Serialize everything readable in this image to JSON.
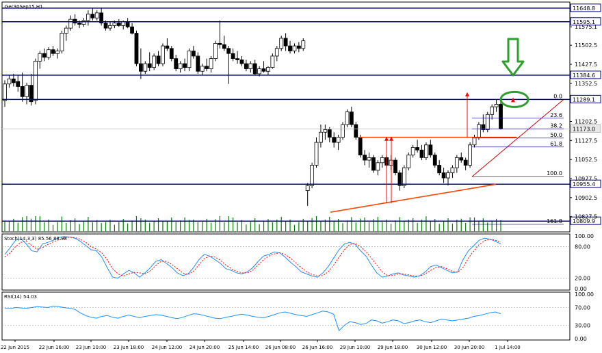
{
  "symbol_label": "Ger30Sep15,H1",
  "stoch_label": "Stoch(14,3,3) 85.56 88.98",
  "rsi_label": "RSI(14) 54.03",
  "colors": {
    "levels": "#00008b",
    "bull_body": "#ffffff",
    "bear_body": "#000000",
    "candle_outline": "#000000",
    "volume": "#008000",
    "fib": "#cc0000",
    "triangle": "#ff4500",
    "signal": "#ff0000",
    "marker": "#2e9e2e",
    "stoch_main": "#1e90ff",
    "stoch_signal": "#ff0000",
    "rsi": "#1e90ff",
    "current_price_line": "#c0c0c0"
  },
  "chart_data": [
    {
      "type": "candlestick",
      "timeframe": "H1",
      "ylim": [
        10770,
        11670
      ],
      "y_ticks": [
        "11575.1",
        "11502.5",
        "11427.5",
        "11352.5",
        "11202.5",
        "11127.5",
        "11052.5",
        "10977.5",
        "10902.5",
        "10827.5"
      ],
      "x_ticks": [
        "22 Jun 2015",
        "22 Jun 16:00",
        "23 Jun 10:00",
        "23 Jun 18:00",
        "24 Jun 12:00",
        "24 Jun 20:00",
        "25 Jun 14:00",
        "26 Jun 08:00",
        "26 Jun 16:00",
        "29 Jun 10:00",
        "29 Jun 18:00",
        "30 Jun 12:00",
        "30 Jun 20:00",
        "1 Jul 14:00"
      ],
      "horizontal_levels": [
        "11648.8",
        "11595.1",
        "11384.6",
        "11289.1",
        "10955.4",
        "10809.9"
      ],
      "current_price": "11173.0",
      "fibonacci": {
        "from": 10985,
        "to": 11289,
        "levels": [
          {
            "label": "0.0",
            "value": 11289.1
          },
          {
            "label": "23.6",
            "value": 11215
          },
          {
            "label": "38.2",
            "value": 11173
          },
          {
            "label": "50.0",
            "value": 11137
          },
          {
            "label": "61.8",
            "value": 11102
          },
          {
            "label": "100.0",
            "value": 10985
          },
          {
            "label": "161.8",
            "value": 10797
          }
        ]
      },
      "candles": [
        [
          11285,
          11365,
          11260,
          11350
        ],
        [
          11350,
          11385,
          11335,
          11370
        ],
        [
          11370,
          11390,
          11340,
          11355
        ],
        [
          11360,
          11385,
          11320,
          11340
        ],
        [
          11340,
          11395,
          11280,
          11300
        ],
        [
          11300,
          11355,
          11270,
          11345
        ],
        [
          11345,
          11390,
          11265,
          11280
        ],
        [
          11285,
          11450,
          11270,
          11440
        ],
        [
          11440,
          11480,
          11410,
          11470
        ],
        [
          11470,
          11490,
          11440,
          11455
        ],
        [
          11455,
          11495,
          11445,
          11485
        ],
        [
          11485,
          11500,
          11460,
          11470
        ],
        [
          11470,
          11490,
          11450,
          11480
        ],
        [
          11480,
          11560,
          11470,
          11550
        ],
        [
          11550,
          11580,
          11520,
          11570
        ],
        [
          11570,
          11620,
          11560,
          11605
        ],
        [
          11605,
          11625,
          11580,
          11590
        ],
        [
          11590,
          11600,
          11570,
          11585
        ],
        [
          11585,
          11610,
          11575,
          11600
        ],
        [
          11600,
          11640,
          11580,
          11625
        ],
        [
          11625,
          11650,
          11600,
          11610
        ],
        [
          11610,
          11640,
          11600,
          11630
        ],
        [
          11630,
          11650,
          11580,
          11590
        ],
        [
          11590,
          11600,
          11560,
          11570
        ],
        [
          11570,
          11595,
          11560,
          11580
        ],
        [
          11580,
          11600,
          11570,
          11590
        ],
        [
          11590,
          11605,
          11575,
          11580
        ],
        [
          11580,
          11600,
          11565,
          11595
        ],
        [
          11595,
          11610,
          11570,
          11575
        ],
        [
          11575,
          11590,
          11545,
          11550
        ],
        [
          11550,
          11560,
          11420,
          11430
        ],
        [
          11430,
          11490,
          11370,
          11400
        ],
        [
          11400,
          11440,
          11390,
          11430
        ],
        [
          11430,
          11475,
          11400,
          11415
        ],
        [
          11415,
          11470,
          11405,
          11460
        ],
        [
          11460,
          11480,
          11420,
          11430
        ],
        [
          11430,
          11510,
          11420,
          11500
        ],
        [
          11500,
          11530,
          11480,
          11490
        ],
        [
          11490,
          11500,
          11440,
          11450
        ],
        [
          11450,
          11465,
          11400,
          11410
        ],
        [
          11410,
          11440,
          11395,
          11430
        ],
        [
          11430,
          11450,
          11400,
          11415
        ],
        [
          11415,
          11490,
          11400,
          11480
        ],
        [
          11480,
          11500,
          11450,
          11460
        ],
        [
          11460,
          11475,
          11390,
          11400
        ],
        [
          11400,
          11430,
          11385,
          11420
        ],
        [
          11420,
          11450,
          11400,
          11410
        ],
        [
          11410,
          11460,
          11395,
          11450
        ],
        [
          11450,
          11520,
          11440,
          11510
        ],
        [
          11510,
          11600,
          11490,
          11505
        ],
        [
          11505,
          11540,
          11480,
          11490
        ],
        [
          11490,
          11500,
          11350,
          11470
        ],
        [
          11470,
          11490,
          11440,
          11450
        ],
        [
          11450,
          11480,
          11430,
          11445
        ],
        [
          11445,
          11460,
          11420,
          11430
        ],
        [
          11430,
          11445,
          11400,
          11410
        ],
        [
          11410,
          11440,
          11395,
          11430
        ],
        [
          11430,
          11445,
          11385,
          11390
        ],
        [
          11390,
          11420,
          11380,
          11410
        ],
        [
          11410,
          11440,
          11395,
          11400
        ],
        [
          11400,
          11420,
          11385,
          11415
        ],
        [
          11415,
          11470,
          11410,
          11460
        ],
        [
          11460,
          11500,
          11440,
          11490
        ],
        [
          11490,
          11540,
          11480,
          11530
        ],
        [
          11530,
          11550,
          11480,
          11500
        ],
        [
          11500,
          11520,
          11470,
          11480
        ],
        [
          11480,
          11510,
          11470,
          11500
        ],
        [
          11500,
          11515,
          11475,
          11490
        ],
        [
          11490,
          11530,
          11480,
          11520
        ],
        [
          10930,
          10960,
          10870,
          10950
        ],
        [
          10950,
          11040,
          10940,
          11030
        ],
        [
          11030,
          11140,
          11020,
          11120
        ],
        [
          11120,
          11190,
          11100,
          11160
        ],
        [
          11160,
          11190,
          11130,
          11170
        ],
        [
          11170,
          11180,
          11120,
          11140
        ],
        [
          11140,
          11160,
          11100,
          11120
        ],
        [
          11120,
          11150,
          11090,
          11140
        ],
        [
          11140,
          11200,
          11130,
          11190
        ],
        [
          11190,
          11250,
          11180,
          11240
        ],
        [
          11240,
          11260,
          11180,
          11190
        ],
        [
          11190,
          11200,
          11130,
          11140
        ],
        [
          11140,
          11150,
          11060,
          11070
        ],
        [
          11070,
          11090,
          11030,
          11050
        ],
        [
          11050,
          11080,
          11020,
          11060
        ],
        [
          11060,
          11070,
          11000,
          11010
        ],
        [
          11010,
          11050,
          10990,
          11040
        ],
        [
          11040,
          11070,
          11020,
          11060
        ],
        [
          11060,
          11070,
          11020,
          11030
        ],
        [
          11030,
          11070,
          11010,
          11050
        ],
        [
          11050,
          11060,
          10990,
          11000
        ],
        [
          11000,
          11010,
          10930,
          10950
        ],
        [
          10950,
          11030,
          10940,
          11020
        ],
        [
          11020,
          11080,
          11010,
          11070
        ],
        [
          11070,
          11110,
          11060,
          11100
        ],
        [
          11100,
          11130,
          11080,
          11090
        ],
        [
          11090,
          11110,
          11050,
          11060
        ],
        [
          11060,
          11120,
          11050,
          11110
        ],
        [
          11110,
          11130,
          11060,
          11070
        ],
        [
          11070,
          11080,
          11020,
          11030
        ],
        [
          11030,
          11050,
          10990,
          11000
        ],
        [
          11000,
          11020,
          10960,
          10980
        ],
        [
          10980,
          11010,
          10950,
          11000
        ],
        [
          11000,
          11030,
          10980,
          11020
        ],
        [
          11020,
          11070,
          11000,
          11060
        ],
        [
          11060,
          11080,
          11040,
          11050
        ],
        [
          11050,
          11060,
          11010,
          11030
        ],
        [
          11030,
          11120,
          11020,
          11110
        ],
        [
          11110,
          11150,
          11100,
          11140
        ],
        [
          11140,
          11200,
          11130,
          11190
        ],
        [
          11190,
          11230,
          11160,
          11170
        ],
        [
          11170,
          11240,
          11160,
          11230
        ],
        [
          11230,
          11270,
          11210,
          11260
        ],
        [
          11260,
          11290,
          11240,
          11270
        ],
        [
          11270,
          11280,
          11170,
          11173
        ]
      ]
    },
    {
      "type": "line",
      "name_label": "Stoch(14,3,3)",
      "ylim": [
        0,
        100
      ],
      "y_ticks": [
        "100.00",
        "80.00",
        "20.00",
        "0.00"
      ],
      "series": [
        {
          "name": "main",
          "values": [
            65,
            78,
            92,
            95,
            85,
            72,
            70,
            85,
            88,
            92,
            97,
            99,
            98,
            96,
            90,
            82,
            74,
            72,
            60,
            40,
            22,
            20,
            28,
            35,
            30,
            22,
            30,
            40,
            52,
            55,
            48,
            40,
            30,
            25,
            28,
            40,
            55,
            65,
            62,
            55,
            48,
            38,
            35,
            30,
            28,
            32,
            40,
            52,
            62,
            65,
            70,
            68,
            60,
            50,
            42,
            32,
            28,
            24,
            22,
            30,
            42,
            58,
            74,
            85,
            88,
            84,
            72,
            62,
            45,
            30,
            22,
            24,
            28,
            30,
            26,
            24,
            22,
            25,
            32,
            42,
            45,
            40,
            35,
            30,
            32,
            55,
            72,
            82,
            92,
            96,
            94,
            90,
            85
          ]
        },
        {
          "name": "signal",
          "values": [
            60,
            68,
            80,
            88,
            90,
            82,
            75,
            78,
            84,
            89,
            93,
            96,
            98,
            97,
            94,
            88,
            80,
            75,
            68,
            55,
            38,
            28,
            24,
            28,
            31,
            30,
            28,
            34,
            44,
            52,
            52,
            46,
            38,
            30,
            27,
            33,
            45,
            57,
            62,
            60,
            54,
            45,
            38,
            33,
            30,
            30,
            35,
            45,
            55,
            62,
            66,
            68,
            65,
            58,
            49,
            40,
            32,
            27,
            24,
            25,
            32,
            45,
            60,
            74,
            84,
            86,
            80,
            70,
            58,
            45,
            32,
            25,
            25,
            28,
            28,
            26,
            24,
            24,
            28,
            35,
            40,
            42,
            38,
            33,
            31,
            40,
            58,
            72,
            84,
            91,
            94,
            92,
            89
          ]
        }
      ]
    },
    {
      "type": "line",
      "name_label": "RSI(14)",
      "ylim": [
        0,
        100
      ],
      "y_ticks": [
        "100.00",
        "70.00",
        "30.00",
        "0.00"
      ],
      "series": [
        {
          "name": "rsi",
          "values": [
            68,
            67,
            70,
            69,
            68,
            70,
            72,
            71,
            70,
            73,
            72,
            70,
            68,
            66,
            58,
            52,
            48,
            46,
            50,
            52,
            48,
            46,
            50,
            53,
            50,
            47,
            50,
            52,
            54,
            53,
            50,
            47,
            45,
            48,
            52,
            56,
            55,
            52,
            49,
            46,
            45,
            48,
            50,
            53,
            55,
            53,
            50,
            48,
            47,
            50,
            54,
            58,
            60,
            57,
            54,
            52,
            50,
            54,
            58,
            62,
            60,
            55,
            18,
            30,
            38,
            36,
            32,
            34,
            42,
            40,
            35,
            38,
            42,
            40,
            34,
            36,
            40,
            42,
            38,
            36,
            40,
            44,
            42,
            40,
            42,
            44,
            46,
            50,
            52,
            55,
            58,
            60,
            56
          ]
        }
      ]
    }
  ]
}
